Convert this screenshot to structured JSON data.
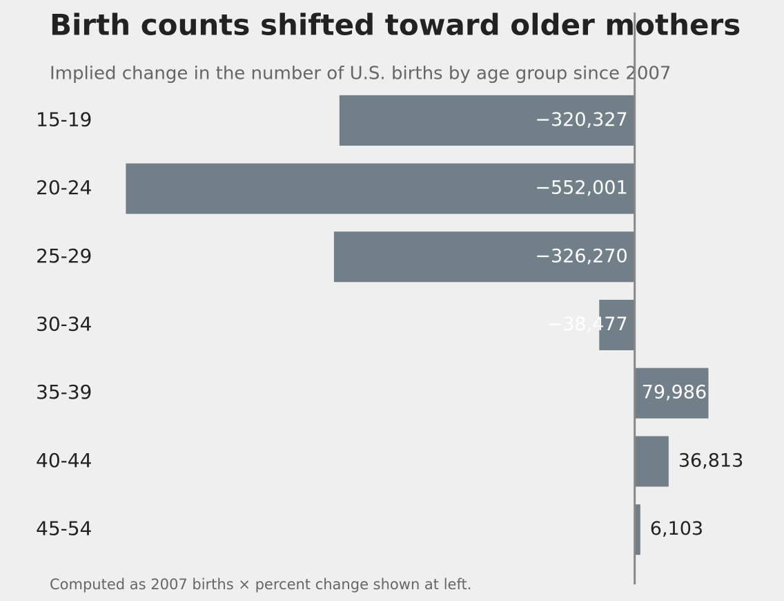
{
  "chart_data": {
    "type": "barh",
    "title": "Birth counts shifted toward older mothers",
    "subtitle": "Implied change in the number of U.S. births by age group since 2007",
    "note": "Computed as 2007 births × percent change shown at left.",
    "categories": [
      "15-19",
      "20-24",
      "25-29",
      "30-34",
      "35-39",
      "40-44",
      "45-54"
    ],
    "values": [
      -320327,
      -552001,
      -326270,
      -38477,
      79986,
      36813,
      6103
    ],
    "value_labels": [
      "−320,327",
      "−552,001",
      "−326,270",
      "−38,477",
      "79,986",
      "36,813",
      "6,103"
    ],
    "color": "#717f88",
    "xlim": [
      -580000,
      150000
    ]
  }
}
